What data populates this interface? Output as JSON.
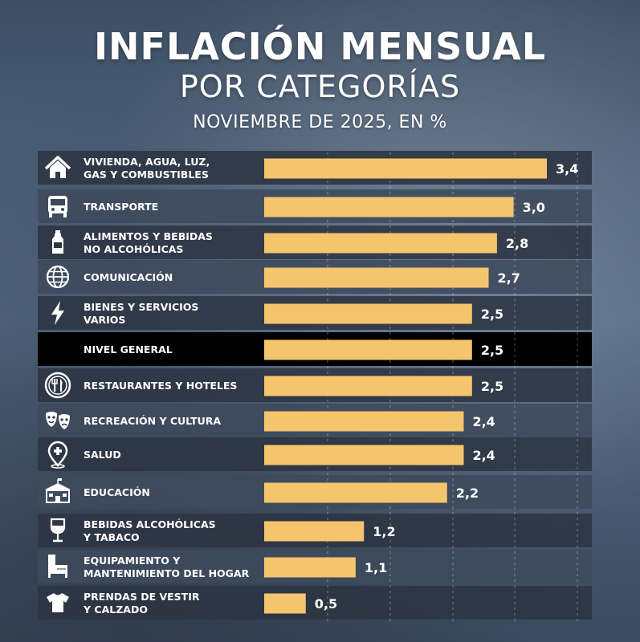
{
  "header": {
    "title_line1": "INFLACIÓN MENSUAL",
    "title_line2": "POR CATEGORÍAS",
    "subtitle": "NOVIEMBRE DE 2025, EN %"
  },
  "colors": {
    "bar": "#f5c56e",
    "row_dark": "#2c3442",
    "row_light": "#3e4a5c",
    "row_highlight": "#000000"
  },
  "chart_data": {
    "type": "bar",
    "orientation": "horizontal",
    "title": "INFLACIÓN MENSUAL POR CATEGORÍAS",
    "subtitle": "NOVIEMBRE DE 2025, EN %",
    "xlim": [
      0,
      3.6
    ],
    "grid": true,
    "categories": [
      [
        "VIVIENDA, AGUA, LUZ,",
        "GAS Y COMBUSTIBLES"
      ],
      [
        "TRANSPORTE"
      ],
      [
        "ALIMENTOS Y BEBIDAS",
        "NO ALCOHÓLICAS"
      ],
      [
        "COMUNICACIÓN"
      ],
      [
        "BIENES Y SERVICIOS",
        "VARIOS"
      ],
      [
        "NIVEL GENERAL"
      ],
      [
        "RESTAURANTES Y HOTELES"
      ],
      [
        "RECREACIÓN Y CULTURA"
      ],
      [
        "SALUD"
      ],
      [
        "EDUCACIÓN"
      ],
      [
        "BEBIDAS ALCOHÓLICAS",
        "Y TABACO"
      ],
      [
        "EQUIPAMIENTO Y",
        "MANTENIMIENTO DEL HOGAR"
      ],
      [
        "PRENDAS DE VESTIR",
        "Y CALZADO"
      ]
    ],
    "values": [
      3.4,
      3.0,
      2.8,
      2.7,
      2.5,
      2.5,
      2.5,
      2.4,
      2.4,
      2.2,
      1.2,
      1.1,
      0.5
    ],
    "value_labels": [
      "3,4",
      "3,0",
      "2,8",
      "2,7",
      "2,5",
      "2,5",
      "2,5",
      "2,4",
      "2,4",
      "2,2",
      "1,2",
      "1,1",
      "0,5"
    ],
    "icons": [
      "house-icon",
      "bus-icon",
      "bottle-icon",
      "globe-icon",
      "lightning-icon",
      "",
      "plate-cutlery-icon",
      "theater-masks-icon",
      "health-pin-icon",
      "school-icon",
      "wine-glass-icon",
      "furniture-icon",
      "tshirt-icon"
    ],
    "highlight": [
      false,
      false,
      false,
      false,
      false,
      true,
      false,
      false,
      false,
      false,
      false,
      false,
      false
    ]
  }
}
